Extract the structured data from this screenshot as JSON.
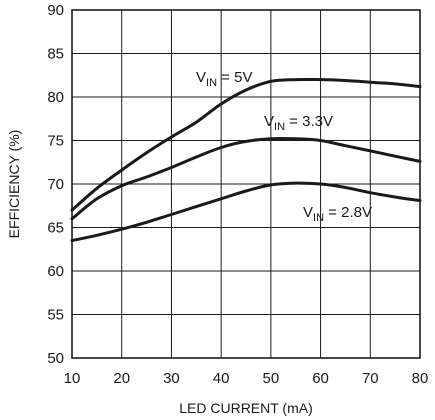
{
  "chart_data": {
    "type": "line",
    "xlabel": "LED CURRENT (mA)",
    "ylabel": "EFFICIENCY (%)",
    "xlim": [
      10,
      80
    ],
    "ylim": [
      50,
      90
    ],
    "xticks": [
      10,
      20,
      30,
      40,
      50,
      60,
      70,
      80
    ],
    "yticks": [
      50,
      55,
      60,
      65,
      70,
      75,
      80,
      85,
      90
    ],
    "grid": true,
    "series": [
      {
        "name": "VIN = 5V",
        "label_main": "V",
        "label_sub": "IN",
        "label_rest": " = 5V",
        "x": [
          10,
          15,
          20,
          25,
          30,
          35,
          40,
          45,
          50,
          55,
          60,
          65,
          70,
          75,
          80
        ],
        "y": [
          67.0,
          69.5,
          71.6,
          73.6,
          75.4,
          77.1,
          79.2,
          80.8,
          81.8,
          82.0,
          82.0,
          81.9,
          81.7,
          81.5,
          81.2
        ]
      },
      {
        "name": "VIN = 3.3V",
        "label_main": "V",
        "label_sub": "IN",
        "label_rest": " = 3.3V",
        "x": [
          10,
          15,
          20,
          25,
          30,
          35,
          40,
          45,
          50,
          55,
          60,
          65,
          70,
          75,
          80
        ],
        "y": [
          66.0,
          68.3,
          69.8,
          70.8,
          71.9,
          73.1,
          74.2,
          74.9,
          75.2,
          75.2,
          75.0,
          74.4,
          73.8,
          73.2,
          72.6
        ]
      },
      {
        "name": "VIN = 2.8V",
        "label_main": "V",
        "label_sub": "IN",
        "label_rest": " = 2.8V",
        "x": [
          10,
          15,
          20,
          25,
          30,
          35,
          40,
          45,
          50,
          55,
          60,
          65,
          70,
          75,
          80
        ],
        "y": [
          63.5,
          64.1,
          64.8,
          65.6,
          66.5,
          67.4,
          68.3,
          69.2,
          69.9,
          70.1,
          70.0,
          69.6,
          69.0,
          68.5,
          68.1
        ]
      }
    ]
  }
}
